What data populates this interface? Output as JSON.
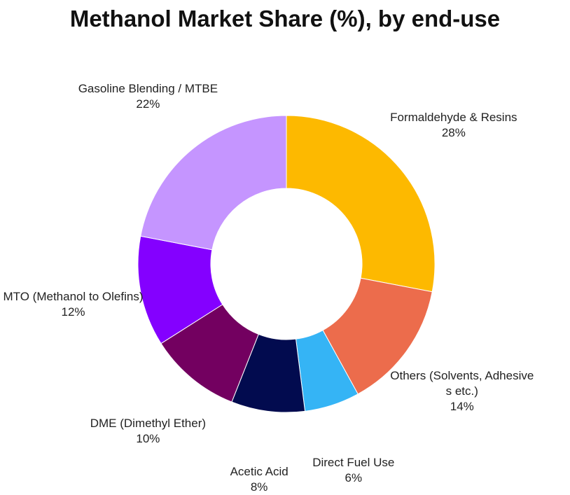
{
  "chart_data": {
    "type": "donut",
    "title": "Methanol Market Share (%), by end-use",
    "categories": [
      "Formaldehyde & Resins",
      "Others (Solvents, Adhesives etc.)",
      "Direct Fuel Use",
      "Acetic Acid",
      "DME (Dimethyl Ether)",
      "MTO (Methanol to Olefins)",
      "Gasoline Blending / MTBE"
    ],
    "values": [
      28,
      14,
      6,
      8,
      10,
      12,
      22
    ],
    "value_labels": [
      "28%",
      "14%",
      "6%",
      "8%",
      "10%",
      "12%",
      "22%"
    ],
    "colors": [
      "#fdb900",
      "#ec6c4c",
      "#35b4f5",
      "#020b4f",
      "#730060",
      "#8400ff",
      "#c595ff"
    ]
  }
}
